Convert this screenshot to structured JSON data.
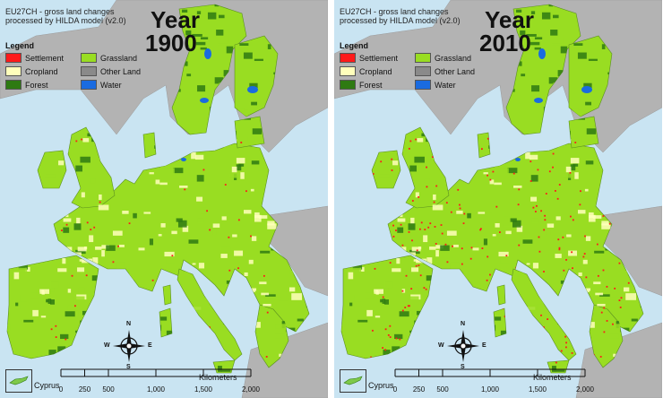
{
  "panels": [
    {
      "subtitle_line1": "EU27CH - gross land changes",
      "subtitle_line2": "processed by HILDA model (v2.0)",
      "year_word": "Year",
      "year_value": "1900",
      "settlement_density": 0.12
    },
    {
      "subtitle_line1": "EU27CH - gross land changes",
      "subtitle_line2": "processed by HILDA model (v2.0)",
      "year_word": "Year",
      "year_value": "2010",
      "settlement_density": 0.45
    }
  ],
  "legend": {
    "title": "Legend",
    "items": [
      {
        "label": "Settlement",
        "color": "#ff1a1a",
        "icon": "settlement-swatch"
      },
      {
        "label": "Grassland",
        "color": "#99dd22",
        "icon": "grassland-swatch"
      },
      {
        "label": "Cropland",
        "color": "#ffffbb",
        "icon": "cropland-swatch"
      },
      {
        "label": "Other Land",
        "color": "#8a8a8a",
        "icon": "other-land-swatch"
      },
      {
        "label": "Forest",
        "color": "#2e7a12",
        "icon": "forest-swatch"
      },
      {
        "label": "Water",
        "color": "#1a6be0",
        "icon": "water-swatch"
      }
    ]
  },
  "compass": {
    "n": "N",
    "s": "S",
    "e": "E",
    "w": "W",
    "icon": "north-arrow-icon"
  },
  "inset": {
    "label": "Cyprus"
  },
  "scale": {
    "unit": "Kilometers",
    "ticks": [
      "0",
      "250",
      "500",
      "1,000",
      "1,500",
      "2,000"
    ],
    "tick_values": [
      0,
      250,
      500,
      1000,
      1500,
      2000
    ]
  },
  "colors": {
    "sea": "#c9e4f2",
    "outside_land": "#b3b3b3",
    "forest": "#2e7a12",
    "grassland": "#99dd22",
    "cropland": "#ffffbb",
    "settlement": "#ff1a1a",
    "water": "#1a6be0"
  }
}
